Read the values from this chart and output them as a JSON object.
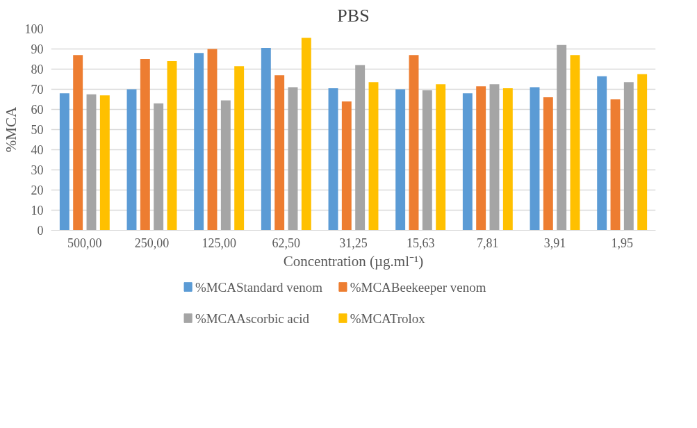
{
  "chart_data": {
    "type": "bar",
    "title": "PBS",
    "xlabel": "Concentration (µg.ml⁻¹)",
    "ylabel": "%MCA",
    "categories": [
      "500,00",
      "250,00",
      "125,00",
      "62,50",
      "31,25",
      "15,63",
      "7,81",
      "3,91",
      "1,95"
    ],
    "series": [
      {
        "name": "%MCAStandard venom",
        "color": "#5b9bd5",
        "values": [
          68,
          70,
          88,
          90.5,
          70.5,
          70,
          68,
          71,
          76.5
        ]
      },
      {
        "name": "%MCABeekeeper venom",
        "color": "#ed7d31",
        "values": [
          87,
          85,
          90,
          77,
          64,
          87,
          71.5,
          66,
          65
        ]
      },
      {
        "name": "%MCAAscorbic acid",
        "color": "#a5a5a5",
        "values": [
          67.5,
          63,
          64.5,
          71,
          82,
          69.5,
          72.5,
          92,
          73.5
        ]
      },
      {
        "name": "%MCATrolox",
        "color": "#ffc000",
        "values": [
          67,
          84,
          81.5,
          95.5,
          73.5,
          72.5,
          70.5,
          87,
          77.5
        ]
      }
    ],
    "ylim": [
      0,
      100
    ],
    "yticks": [
      0,
      10,
      20,
      30,
      40,
      50,
      60,
      70,
      80,
      90,
      100
    ],
    "grid": "y",
    "legend": "bottom"
  }
}
